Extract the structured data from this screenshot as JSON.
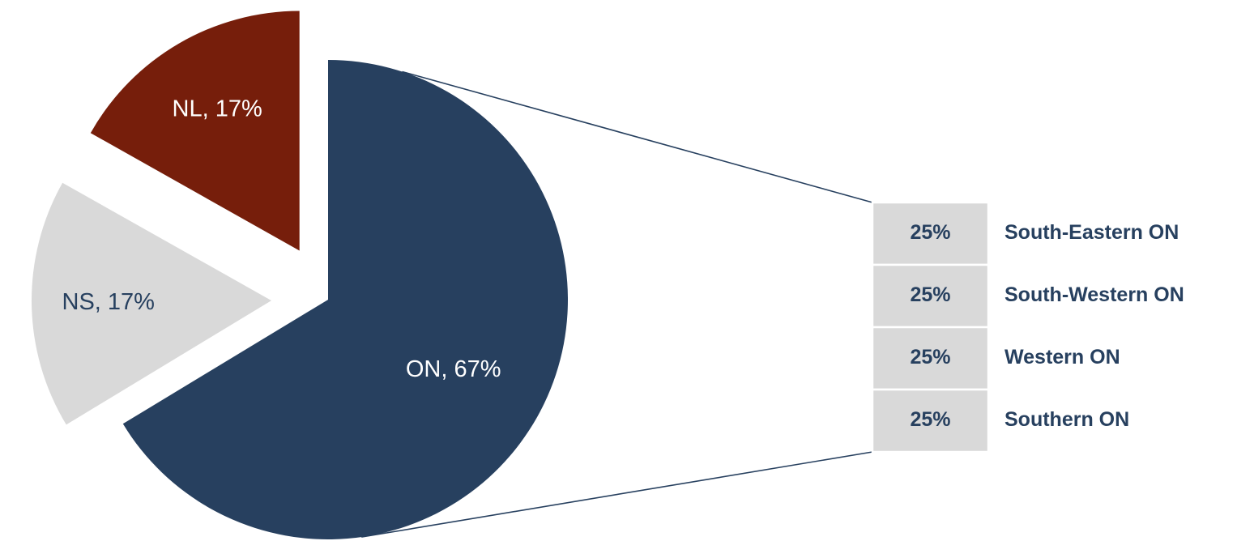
{
  "chart_data": [
    {
      "type": "pie",
      "slices": [
        {
          "label": "ON",
          "value": 67,
          "label_text": "ON, 67%",
          "color": "#27405f",
          "label_color": "#ffffff"
        },
        {
          "label": "NS",
          "value": 17,
          "label_text": "NS, 17%",
          "color": "#d9d9d9",
          "label_color": "#27405f"
        },
        {
          "label": "NL",
          "value": 17,
          "label_text": "NL, 17%",
          "color": "#761e0b",
          "label_color": "#ffffff"
        }
      ],
      "exploded": [
        "NS",
        "NL"
      ],
      "breakout_of": "ON"
    },
    {
      "type": "bar",
      "stacked": true,
      "orientation": "vertical",
      "categories": [
        "South-Eastern ON",
        "South-Western ON",
        "Western ON",
        "Southern ON"
      ],
      "values": [
        25,
        25,
        25,
        25
      ],
      "value_labels": [
        "25%",
        "25%",
        "25%",
        "25%"
      ],
      "bar_color": "#d9d9d9",
      "text_color": "#27405f"
    }
  ],
  "connector_color": "#27405f"
}
